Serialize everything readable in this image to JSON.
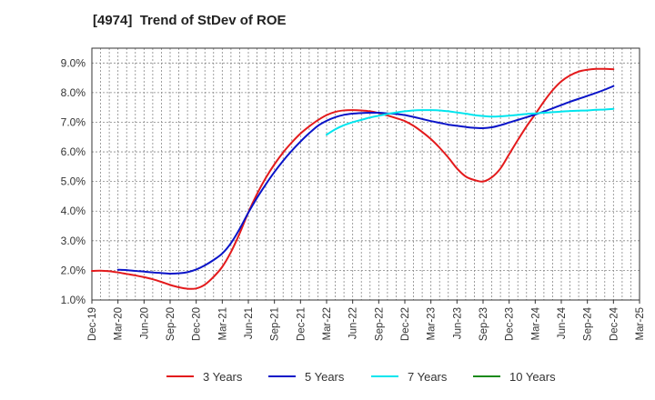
{
  "chart_data": {
    "type": "line",
    "title": "[4974]  Trend of StDev of ROE",
    "xlabel": "",
    "ylabel": "",
    "x_ticks": [
      "Dec-19",
      "Mar-20",
      "Jun-20",
      "Sep-20",
      "Dec-20",
      "Mar-21",
      "Jun-21",
      "Sep-21",
      "Dec-21",
      "Mar-22",
      "Jun-22",
      "Sep-22",
      "Dec-22",
      "Mar-23",
      "Jun-23",
      "Sep-23",
      "Dec-23",
      "Mar-24",
      "Jun-24",
      "Sep-24",
      "Dec-24",
      "Mar-25"
    ],
    "y_ticks": [
      "1.0%",
      "2.0%",
      "3.0%",
      "4.0%",
      "5.0%",
      "6.0%",
      "7.0%",
      "8.0%",
      "9.0%"
    ],
    "ylim": [
      1.0,
      9.5
    ],
    "grid": true,
    "legend_position": "bottom",
    "series": [
      {
        "name": "3 Years",
        "color": "#e31a1c",
        "points": [
          [
            "Dec-19",
            1.98
          ],
          [
            "Jan-20",
            1.99
          ],
          [
            "Feb-20",
            1.97
          ],
          [
            "Mar-20",
            1.93
          ],
          [
            "Apr-20",
            1.88
          ],
          [
            "May-20",
            1.83
          ],
          [
            "Jun-20",
            1.77
          ],
          [
            "Jul-20",
            1.7
          ],
          [
            "Aug-20",
            1.61
          ],
          [
            "Sep-20",
            1.51
          ],
          [
            "Oct-20",
            1.43
          ],
          [
            "Nov-20",
            1.38
          ],
          [
            "Dec-20",
            1.39
          ],
          [
            "Jan-21",
            1.52
          ],
          [
            "Feb-21",
            1.78
          ],
          [
            "Mar-21",
            2.12
          ],
          [
            "Apr-21",
            2.62
          ],
          [
            "May-21",
            3.25
          ],
          [
            "Jun-21",
            3.96
          ],
          [
            "Jul-21",
            4.58
          ],
          [
            "Aug-21",
            5.12
          ],
          [
            "Sep-21",
            5.58
          ],
          [
            "Oct-21",
            5.98
          ],
          [
            "Nov-21",
            6.32
          ],
          [
            "Dec-21",
            6.62
          ],
          [
            "Jan-22",
            6.86
          ],
          [
            "Feb-22",
            7.07
          ],
          [
            "Mar-22",
            7.24
          ],
          [
            "Apr-22",
            7.35
          ],
          [
            "May-22",
            7.4
          ],
          [
            "Jun-22",
            7.41
          ],
          [
            "Jul-22",
            7.4
          ],
          [
            "Aug-22",
            7.37
          ],
          [
            "Sep-22",
            7.31
          ],
          [
            "Oct-22",
            7.23
          ],
          [
            "Nov-22",
            7.14
          ],
          [
            "Dec-22",
            7.04
          ],
          [
            "Jan-23",
            6.88
          ],
          [
            "Feb-23",
            6.67
          ],
          [
            "Mar-23",
            6.43
          ],
          [
            "Apr-23",
            6.14
          ],
          [
            "May-23",
            5.81
          ],
          [
            "Jun-23",
            5.44
          ],
          [
            "Jul-23",
            5.17
          ],
          [
            "Aug-23",
            5.05
          ],
          [
            "Sep-23",
            5.0
          ],
          [
            "Oct-23",
            5.14
          ],
          [
            "Nov-23",
            5.44
          ],
          [
            "Dec-23",
            5.92
          ],
          [
            "Jan-24",
            6.4
          ],
          [
            "Feb-24",
            6.86
          ],
          [
            "Mar-24",
            7.27
          ],
          [
            "Apr-24",
            7.7
          ],
          [
            "May-24",
            8.08
          ],
          [
            "Jun-24",
            8.38
          ],
          [
            "Jul-24",
            8.58
          ],
          [
            "Aug-24",
            8.71
          ],
          [
            "Sep-24",
            8.77
          ],
          [
            "Oct-24",
            8.8
          ],
          [
            "Nov-24",
            8.8
          ],
          [
            "Dec-24",
            8.79
          ]
        ]
      },
      {
        "name": "5 Years",
        "color": "#0a14c8",
        "points": [
          [
            "Mar-20",
            2.02
          ],
          [
            "Apr-20",
            2.01
          ],
          [
            "May-20",
            1.98
          ],
          [
            "Jun-20",
            1.96
          ],
          [
            "Jul-20",
            1.93
          ],
          [
            "Aug-20",
            1.91
          ],
          [
            "Sep-20",
            1.89
          ],
          [
            "Oct-20",
            1.9
          ],
          [
            "Nov-20",
            1.94
          ],
          [
            "Dec-20",
            2.03
          ],
          [
            "Jan-21",
            2.17
          ],
          [
            "Feb-21",
            2.35
          ],
          [
            "Mar-21",
            2.57
          ],
          [
            "Apr-21",
            2.92
          ],
          [
            "May-21",
            3.4
          ],
          [
            "Jun-21",
            3.95
          ],
          [
            "Jul-21",
            4.45
          ],
          [
            "Aug-21",
            4.9
          ],
          [
            "Sep-21",
            5.32
          ],
          [
            "Oct-21",
            5.7
          ],
          [
            "Nov-21",
            6.04
          ],
          [
            "Dec-21",
            6.35
          ],
          [
            "Jan-22",
            6.63
          ],
          [
            "Feb-22",
            6.88
          ],
          [
            "Mar-22",
            7.05
          ],
          [
            "Apr-22",
            7.17
          ],
          [
            "May-22",
            7.25
          ],
          [
            "Jun-22",
            7.29
          ],
          [
            "Jul-22",
            7.31
          ],
          [
            "Aug-22",
            7.32
          ],
          [
            "Sep-22",
            7.32
          ],
          [
            "Oct-22",
            7.3
          ],
          [
            "Nov-22",
            7.28
          ],
          [
            "Dec-22",
            7.24
          ],
          [
            "Jan-23",
            7.18
          ],
          [
            "Feb-23",
            7.11
          ],
          [
            "Mar-23",
            7.04
          ],
          [
            "Apr-23",
            6.98
          ],
          [
            "May-23",
            6.92
          ],
          [
            "Jun-23",
            6.88
          ],
          [
            "Jul-23",
            6.84
          ],
          [
            "Aug-23",
            6.81
          ],
          [
            "Sep-23",
            6.8
          ],
          [
            "Oct-23",
            6.83
          ],
          [
            "Nov-23",
            6.9
          ],
          [
            "Dec-23",
            6.99
          ],
          [
            "Jan-24",
            7.08
          ],
          [
            "Feb-24",
            7.17
          ],
          [
            "Mar-24",
            7.26
          ],
          [
            "Apr-24",
            7.36
          ],
          [
            "May-24",
            7.47
          ],
          [
            "Jun-24",
            7.58
          ],
          [
            "Jul-24",
            7.69
          ],
          [
            "Aug-24",
            7.79
          ],
          [
            "Sep-24",
            7.89
          ],
          [
            "Oct-24",
            7.99
          ],
          [
            "Nov-24",
            8.1
          ],
          [
            "Dec-24",
            8.22
          ]
        ]
      },
      {
        "name": "7 Years",
        "color": "#00e5ee",
        "points": [
          [
            "Mar-22",
            6.58
          ],
          [
            "Apr-22",
            6.76
          ],
          [
            "May-22",
            6.9
          ],
          [
            "Jun-22",
            7.0
          ],
          [
            "Jul-22",
            7.08
          ],
          [
            "Aug-22",
            7.16
          ],
          [
            "Sep-22",
            7.22
          ],
          [
            "Oct-22",
            7.28
          ],
          [
            "Nov-22",
            7.33
          ],
          [
            "Dec-22",
            7.37
          ],
          [
            "Jan-23",
            7.4
          ],
          [
            "Feb-23",
            7.41
          ],
          [
            "Mar-23",
            7.41
          ],
          [
            "Apr-23",
            7.4
          ],
          [
            "May-23",
            7.37
          ],
          [
            "Jun-23",
            7.33
          ],
          [
            "Jul-23",
            7.29
          ],
          [
            "Aug-23",
            7.24
          ],
          [
            "Sep-23",
            7.21
          ],
          [
            "Oct-23",
            7.19
          ],
          [
            "Nov-23",
            7.2
          ],
          [
            "Dec-23",
            7.22
          ],
          [
            "Jan-24",
            7.25
          ],
          [
            "Feb-24",
            7.28
          ],
          [
            "Mar-24",
            7.3
          ],
          [
            "Apr-24",
            7.32
          ],
          [
            "May-24",
            7.34
          ],
          [
            "Jun-24",
            7.36
          ],
          [
            "Jul-24",
            7.38
          ],
          [
            "Aug-24",
            7.39
          ],
          [
            "Sep-24",
            7.4
          ],
          [
            "Oct-24",
            7.42
          ],
          [
            "Nov-24",
            7.43
          ],
          [
            "Dec-24",
            7.45
          ]
        ]
      },
      {
        "name": "10 Years",
        "color": "#1a8a1a",
        "points": []
      }
    ]
  }
}
